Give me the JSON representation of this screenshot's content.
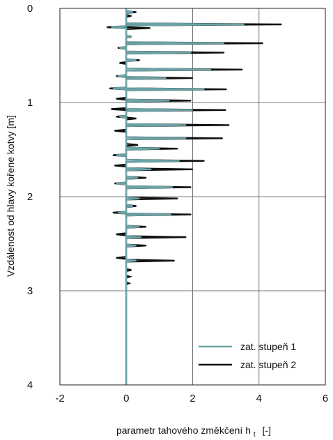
{
  "chart_data": {
    "type": "line",
    "orientation": "vertical-profile",
    "title": "",
    "xlabel_main": "parametr tahového změkčení h",
    "xlabel_sub": "t",
    "xlabel_unit": "[-]",
    "ylabel": "Vzdálenost od hlavy kořene kotvy [m]",
    "xlim": [
      -2,
      6
    ],
    "ylim": [
      0,
      4
    ],
    "y_inverted": true,
    "grid": true,
    "legend_position": "bottom-right",
    "x_ticks": [
      "-2",
      "0",
      "2",
      "4",
      "6"
    ],
    "y_ticks": [
      "0",
      "1",
      "2",
      "3",
      "4"
    ],
    "x_tick_values": [
      -2,
      0,
      2,
      4,
      6
    ],
    "y_tick_values": [
      0,
      1,
      2,
      3,
      4
    ],
    "series": [
      {
        "name": "zat. stupeň 2",
        "color": "#111111",
        "spikes": [
          {
            "depth": 0.04,
            "value": 0.3
          },
          {
            "depth": 0.08,
            "value": 0.15
          },
          {
            "depth": 0.17,
            "value": 4.68
          },
          {
            "depth": 0.2,
            "value": -0.58
          },
          {
            "depth": 0.21,
            "value": 0.72
          },
          {
            "depth": 0.3,
            "value": 0.15
          },
          {
            "depth": 0.37,
            "value": 4.12
          },
          {
            "depth": 0.42,
            "value": -0.25
          },
          {
            "depth": 0.47,
            "value": 2.95
          },
          {
            "depth": 0.55,
            "value": 0.4
          },
          {
            "depth": 0.58,
            "value": -0.2
          },
          {
            "depth": 0.65,
            "value": 3.5
          },
          {
            "depth": 0.72,
            "value": -0.3
          },
          {
            "depth": 0.74,
            "value": 2.0
          },
          {
            "depth": 0.85,
            "value": -0.5
          },
          {
            "depth": 0.86,
            "value": 3.02
          },
          {
            "depth": 0.96,
            "value": -0.3
          },
          {
            "depth": 0.98,
            "value": 1.95
          },
          {
            "depth": 1.07,
            "value": -0.45
          },
          {
            "depth": 1.08,
            "value": 3.0
          },
          {
            "depth": 1.15,
            "value": -0.3
          },
          {
            "depth": 1.17,
            "value": 0.3
          },
          {
            "depth": 1.24,
            "value": 3.1
          },
          {
            "depth": 1.3,
            "value": -0.35
          },
          {
            "depth": 1.38,
            "value": 2.9
          },
          {
            "depth": 1.45,
            "value": 0.35
          },
          {
            "depth": 1.49,
            "value": 1.55
          },
          {
            "depth": 1.56,
            "value": -0.4
          },
          {
            "depth": 1.62,
            "value": 2.35
          },
          {
            "depth": 1.67,
            "value": -0.35
          },
          {
            "depth": 1.71,
            "value": 2.0
          },
          {
            "depth": 1.8,
            "value": 0.6
          },
          {
            "depth": 1.86,
            "value": -0.35
          },
          {
            "depth": 1.9,
            "value": 1.95
          },
          {
            "depth": 2.02,
            "value": 1.55
          },
          {
            "depth": 2.1,
            "value": 0.3
          },
          {
            "depth": 2.17,
            "value": -0.4
          },
          {
            "depth": 2.19,
            "value": 1.95
          },
          {
            "depth": 2.32,
            "value": 0.6
          },
          {
            "depth": 2.4,
            "value": -0.3
          },
          {
            "depth": 2.43,
            "value": 1.8
          },
          {
            "depth": 2.52,
            "value": 0.6
          },
          {
            "depth": 2.65,
            "value": -0.3
          },
          {
            "depth": 2.68,
            "value": 1.45
          },
          {
            "depth": 2.78,
            "value": 0.15
          },
          {
            "depth": 2.85,
            "value": 0.1
          },
          {
            "depth": 2.92,
            "value": 0.08
          }
        ]
      },
      {
        "name": "zat. stupeň 1",
        "color": "#6aa3a6",
        "spikes": [
          {
            "depth": 0.04,
            "value": 0.2
          },
          {
            "depth": 0.17,
            "value": 3.55
          },
          {
            "depth": 0.2,
            "value": -0.45
          },
          {
            "depth": 0.3,
            "value": 0.1
          },
          {
            "depth": 0.37,
            "value": 2.95
          },
          {
            "depth": 0.42,
            "value": -0.2
          },
          {
            "depth": 0.47,
            "value": 1.95
          },
          {
            "depth": 0.55,
            "value": 0.3
          },
          {
            "depth": 0.65,
            "value": 2.55
          },
          {
            "depth": 0.72,
            "value": -0.25
          },
          {
            "depth": 0.74,
            "value": 1.2
          },
          {
            "depth": 0.85,
            "value": -0.4
          },
          {
            "depth": 0.86,
            "value": 2.35
          },
          {
            "depth": 0.98,
            "value": 1.3
          },
          {
            "depth": 1.08,
            "value": 2.0
          },
          {
            "depth": 1.15,
            "value": -0.2
          },
          {
            "depth": 1.24,
            "value": 1.8
          },
          {
            "depth": 1.38,
            "value": 1.8
          },
          {
            "depth": 1.49,
            "value": 1.0
          },
          {
            "depth": 1.56,
            "value": -0.3
          },
          {
            "depth": 1.62,
            "value": 1.6
          },
          {
            "depth": 1.71,
            "value": 0.75
          },
          {
            "depth": 1.8,
            "value": 0.35
          },
          {
            "depth": 1.86,
            "value": -0.3
          },
          {
            "depth": 1.9,
            "value": 1.4
          },
          {
            "depth": 2.02,
            "value": 0.4
          },
          {
            "depth": 2.1,
            "value": 0.2
          },
          {
            "depth": 2.17,
            "value": -0.25
          },
          {
            "depth": 2.19,
            "value": 1.35
          },
          {
            "depth": 2.32,
            "value": 0.4
          },
          {
            "depth": 2.43,
            "value": 0.45
          },
          {
            "depth": 2.52,
            "value": 0.3
          },
          {
            "depth": 2.68,
            "value": 0.3
          }
        ]
      }
    ]
  }
}
